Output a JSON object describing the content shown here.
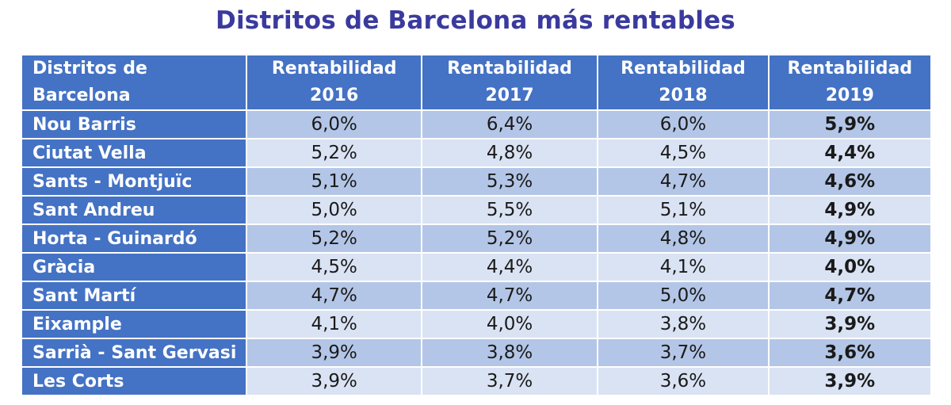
{
  "chart_data": {
    "type": "table",
    "title": "Distritos de Barcelona más rentables",
    "header_first_line1": "Distritos de",
    "header_first_line2": "Barcelona",
    "columns": [
      {
        "line1": "Rentabilidad",
        "line2": "2016"
      },
      {
        "line1": "Rentabilidad",
        "line2": "2017"
      },
      {
        "line1": "Rentabilidad",
        "line2": "2018"
      },
      {
        "line1": "Rentabilidad",
        "line2": "2019"
      }
    ],
    "rows": [
      {
        "district": "Nou Barris",
        "values": [
          "6,0%",
          "6,4%",
          "6,0%",
          "5,9%"
        ]
      },
      {
        "district": "Ciutat Vella",
        "values": [
          "5,2%",
          "4,8%",
          "4,5%",
          "4,4%"
        ]
      },
      {
        "district": "Sants - Montjuïc",
        "values": [
          "5,1%",
          "5,3%",
          "4,7%",
          "4,6%"
        ]
      },
      {
        "district": "Sant Andreu",
        "values": [
          "5,0%",
          "5,5%",
          "5,1%",
          "4,9%"
        ]
      },
      {
        "district": "Horta - Guinardó",
        "values": [
          "5,2%",
          "5,2%",
          "4,8%",
          "4,9%"
        ]
      },
      {
        "district": "Gràcia",
        "values": [
          "4,5%",
          "4,4%",
          "4,1%",
          "4,0%"
        ]
      },
      {
        "district": "Sant Martí",
        "values": [
          "4,7%",
          "4,7%",
          "5,0%",
          "4,7%"
        ]
      },
      {
        "district": "Eixample",
        "values": [
          "4,1%",
          "4,0%",
          "3,8%",
          "3,9%"
        ]
      },
      {
        "district": "Sarrià - Sant Gervasi",
        "values": [
          "3,9%",
          "3,8%",
          "3,7%",
          "3,6%"
        ]
      },
      {
        "district": "Les Corts",
        "values": [
          "3,9%",
          "3,7%",
          "3,6%",
          "3,9%"
        ]
      }
    ],
    "colors": {
      "title": "#3a3a9e",
      "header_bg": "#4472c4",
      "band_dark": "#b4c6e7",
      "band_light": "#dae3f3"
    }
  }
}
